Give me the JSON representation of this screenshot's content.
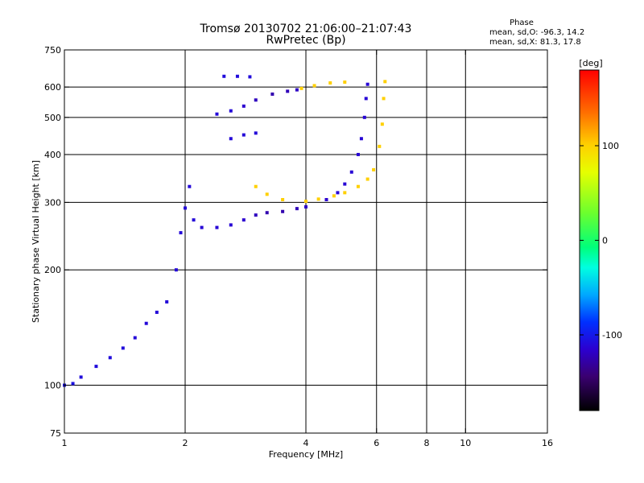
{
  "chart_data": {
    "type": "scatter",
    "title": "Tromsø 20130702 21:06:00–21:07:43",
    "subtitle": "RwPretec (Bp)",
    "xlabel": "Frequency [MHz]",
    "ylabel": "Stationary phase Virtual Height [km]",
    "x_scale": "log",
    "y_scale": "log",
    "xlim": [
      1,
      16
    ],
    "ylim": [
      75,
      750
    ],
    "x_ticks": [
      1,
      2,
      4,
      6,
      8,
      10,
      16
    ],
    "x_tick_labels": [
      "1",
      "2",
      "4",
      "6",
      "8",
      "10",
      "16"
    ],
    "x_grid": [
      2,
      4,
      6,
      8,
      10
    ],
    "y_ticks": [
      75,
      100,
      200,
      300,
      400,
      500,
      600,
      750
    ],
    "y_tick_labels": [
      "75",
      "100",
      "200",
      "300",
      "400",
      "500",
      "600",
      "750"
    ],
    "y_grid": [
      100,
      200,
      300,
      400,
      500,
      600
    ],
    "grid": true,
    "stats": {
      "heading": "Phase",
      "line_o": "mean, sd,O: -96.3, 14.2",
      "line_x": "mean, sd,X: 81.3, 17.8"
    },
    "colorbar": {
      "label": "[deg]",
      "range": [
        -180,
        180
      ],
      "ticks": [
        100,
        0,
        -100
      ],
      "tick_labels": [
        "100",
        "0",
        "-100"
      ]
    },
    "series": [
      {
        "trace": [
          {
            "x": 1.0,
            "y": 100,
            "phase": -105
          },
          {
            "x": 1.05,
            "y": 101,
            "phase": -105
          },
          {
            "x": 1.1,
            "y": 105,
            "phase": -108
          },
          {
            "x": 1.2,
            "y": 112,
            "phase": -108
          },
          {
            "x": 1.3,
            "y": 118,
            "phase": -108
          },
          {
            "x": 1.4,
            "y": 125,
            "phase": -108
          },
          {
            "x": 1.5,
            "y": 133,
            "phase": -110
          },
          {
            "x": 1.6,
            "y": 145,
            "phase": -110
          },
          {
            "x": 1.7,
            "y": 155,
            "phase": -110
          },
          {
            "x": 1.8,
            "y": 165,
            "phase": -110
          },
          {
            "x": 1.9,
            "y": 200,
            "phase": -110
          },
          {
            "x": 1.95,
            "y": 250,
            "phase": -110
          },
          {
            "x": 2.0,
            "y": 290,
            "phase": -110
          },
          {
            "x": 2.05,
            "y": 330,
            "phase": -110
          },
          {
            "x": 2.1,
            "y": 270,
            "phase": -110
          },
          {
            "x": 2.2,
            "y": 258,
            "phase": -112
          },
          {
            "x": 2.4,
            "y": 258,
            "phase": -112
          },
          {
            "x": 2.6,
            "y": 262,
            "phase": -112
          },
          {
            "x": 2.8,
            "y": 270,
            "phase": -115
          },
          {
            "x": 3.0,
            "y": 278,
            "phase": -120
          },
          {
            "x": 3.2,
            "y": 282,
            "phase": -125
          },
          {
            "x": 3.5,
            "y": 284,
            "phase": -125
          },
          {
            "x": 3.8,
            "y": 289,
            "phase": -122
          },
          {
            "x": 4.0,
            "y": 292,
            "phase": -118
          },
          {
            "x": 4.5,
            "y": 305,
            "phase": -115
          },
          {
            "x": 4.8,
            "y": 318,
            "phase": -112
          },
          {
            "x": 5.0,
            "y": 335,
            "phase": -112
          },
          {
            "x": 5.2,
            "y": 360,
            "phase": -112
          },
          {
            "x": 5.4,
            "y": 400,
            "phase": -112
          },
          {
            "x": 5.5,
            "y": 440,
            "phase": -112
          },
          {
            "x": 5.6,
            "y": 500,
            "phase": -112
          },
          {
            "x": 5.65,
            "y": 560,
            "phase": -112
          },
          {
            "x": 5.7,
            "y": 610,
            "phase": -112
          }
        ]
      },
      {
        "trace": [
          {
            "x": 3.0,
            "y": 330,
            "phase": 100
          },
          {
            "x": 3.2,
            "y": 315,
            "phase": 100
          },
          {
            "x": 3.5,
            "y": 305,
            "phase": 100
          },
          {
            "x": 4.0,
            "y": 302,
            "phase": 100
          },
          {
            "x": 4.3,
            "y": 306,
            "phase": 100
          },
          {
            "x": 4.7,
            "y": 312,
            "phase": 100
          },
          {
            "x": 5.0,
            "y": 318,
            "phase": 100
          },
          {
            "x": 5.4,
            "y": 330,
            "phase": 100
          },
          {
            "x": 5.7,
            "y": 345,
            "phase": 100
          },
          {
            "x": 5.9,
            "y": 365,
            "phase": 100
          },
          {
            "x": 6.1,
            "y": 420,
            "phase": 100
          },
          {
            "x": 6.2,
            "y": 480,
            "phase": 100
          },
          {
            "x": 6.25,
            "y": 560,
            "phase": 100
          },
          {
            "x": 6.3,
            "y": 620,
            "phase": 100
          }
        ]
      },
      {
        "trace": [
          {
            "x": 2.4,
            "y": 510,
            "phase": -110
          },
          {
            "x": 2.6,
            "y": 520,
            "phase": -110
          },
          {
            "x": 2.8,
            "y": 535,
            "phase": -115
          },
          {
            "x": 3.0,
            "y": 555,
            "phase": -120
          },
          {
            "x": 3.3,
            "y": 575,
            "phase": -125
          },
          {
            "x": 3.6,
            "y": 585,
            "phase": -122
          },
          {
            "x": 3.8,
            "y": 590,
            "phase": -118
          }
        ]
      },
      {
        "trace": [
          {
            "x": 3.9,
            "y": 595,
            "phase": 100
          },
          {
            "x": 4.2,
            "y": 605,
            "phase": 100
          },
          {
            "x": 4.6,
            "y": 615,
            "phase": 100
          },
          {
            "x": 5.0,
            "y": 618,
            "phase": 100
          }
        ]
      },
      {
        "trace": [
          {
            "x": 2.5,
            "y": 640,
            "phase": -108
          },
          {
            "x": 2.7,
            "y": 640,
            "phase": -108
          },
          {
            "x": 2.9,
            "y": 638,
            "phase": -108
          }
        ]
      },
      {
        "trace": [
          {
            "x": 2.6,
            "y": 440,
            "phase": -110
          },
          {
            "x": 2.8,
            "y": 450,
            "phase": -110
          },
          {
            "x": 3.0,
            "y": 455,
            "phase": -110
          }
        ]
      }
    ]
  }
}
